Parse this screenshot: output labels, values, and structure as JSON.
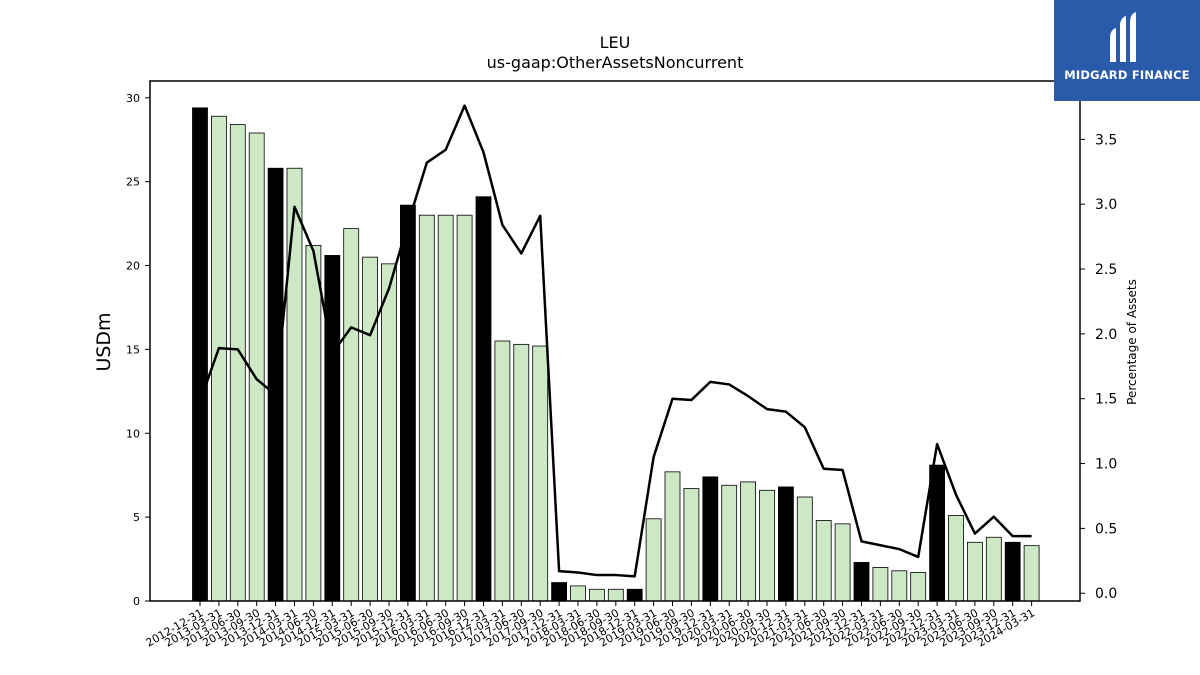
{
  "chart_data": {
    "type": "bar",
    "title": "LEU",
    "subtitle": "us-gaap:OtherAssetsNoncurrent",
    "ylabel": "USDm",
    "y2label": "Percentage of Assets",
    "ylim": [
      0,
      31
    ],
    "y2lim": [
      -0.06,
      3.95
    ],
    "yticks": [
      0,
      5,
      10,
      15,
      20,
      25,
      30
    ],
    "y2ticks": [
      0.0,
      0.5,
      1.0,
      1.5,
      2.0,
      2.5,
      3.0,
      3.5
    ],
    "categories": [
      "2012-12-31",
      "2013-03-31",
      "2013-06-30",
      "2013-09-30",
      "2013-12-31",
      "2014-03-31",
      "2014-06-30",
      "2014-12-31",
      "2015-03-31",
      "2015-06-30",
      "2015-09-30",
      "2015-12-31",
      "2016-03-31",
      "2016-06-30",
      "2016-09-30",
      "2016-12-31",
      "2017-03-31",
      "2017-06-30",
      "2017-09-30",
      "2017-12-31",
      "2018-03-31",
      "2018-06-30",
      "2018-09-30",
      "2018-12-31",
      "2019-03-31",
      "2019-06-30",
      "2019-09-30",
      "2019-12-31",
      "2020-03-31",
      "2020-06-30",
      "2020-09-30",
      "2020-12-31",
      "2021-03-31",
      "2021-06-30",
      "2021-09-30",
      "2021-12-31",
      "2022-03-31",
      "2022-06-30",
      "2022-09-30",
      "2022-12-31",
      "2023-03-31",
      "2023-06-30",
      "2023-09-30",
      "2023-12-31",
      "2024-03-31"
    ],
    "series": [
      {
        "kind": "bar",
        "axis": "left",
        "values": [
          29.4,
          28.9,
          28.4,
          27.9,
          25.8,
          25.8,
          21.2,
          20.6,
          22.2,
          20.5,
          20.1,
          23.6,
          23.0,
          23.0,
          23.0,
          24.1,
          15.5,
          15.3,
          15.2,
          1.1,
          0.9,
          0.7,
          0.7,
          0.7,
          4.9,
          7.7,
          6.7,
          7.4,
          6.9,
          7.1,
          6.6,
          6.8,
          6.2,
          4.8,
          4.6,
          2.3,
          2.0,
          1.8,
          1.7,
          8.1,
          5.1,
          3.5,
          3.8,
          3.5,
          3.3
        ],
        "annual": [
          true,
          false,
          false,
          false,
          true,
          false,
          false,
          true,
          false,
          false,
          false,
          true,
          false,
          false,
          false,
          true,
          false,
          false,
          false,
          true,
          false,
          false,
          false,
          true,
          false,
          false,
          false,
          true,
          false,
          false,
          false,
          true,
          false,
          false,
          false,
          true,
          false,
          false,
          false,
          true,
          false,
          false,
          false,
          true,
          false
        ]
      },
      {
        "kind": "line",
        "axis": "right",
        "values": [
          1.48,
          1.89,
          1.88,
          1.65,
          1.53,
          2.98,
          2.64,
          1.85,
          2.05,
          1.99,
          2.35,
          2.85,
          3.32,
          3.42,
          3.76,
          3.4,
          2.84,
          2.62,
          2.91,
          0.17,
          0.16,
          0.14,
          0.14,
          0.13,
          1.05,
          1.5,
          1.49,
          1.63,
          1.61,
          1.52,
          1.42,
          1.4,
          1.28,
          0.96,
          0.95,
          0.4,
          0.37,
          0.34,
          0.28,
          1.15,
          0.76,
          0.46,
          0.59,
          0.44,
          0.44
        ]
      }
    ],
    "colors": {
      "annual_bar": "#000000",
      "quarter_bar": "#cce8c4",
      "line": "#000000"
    },
    "grid": false,
    "legend": "none"
  },
  "brand": {
    "name": "MIDGARD FINANCE",
    "logo_color": "#2a5bab"
  }
}
